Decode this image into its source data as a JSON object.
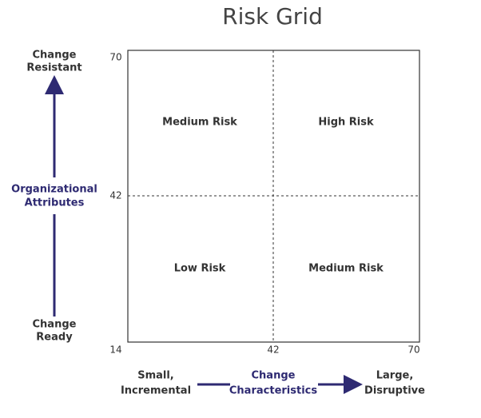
{
  "title": "Risk Grid",
  "y_axis": {
    "top": [
      "Change",
      "Resistant"
    ],
    "label": [
      "Organizational",
      "Attributes"
    ],
    "bottom": [
      "Change",
      "Ready"
    ]
  },
  "x_axis": {
    "left": [
      "Small,",
      "Incremental"
    ],
    "label": [
      "Change",
      "Characteristics"
    ],
    "right": [
      "Large,",
      "Disruptive"
    ]
  },
  "ticks": {
    "y": [
      70,
      42
    ],
    "origin": 14,
    "x": [
      42,
      70
    ]
  },
  "quadrants": [
    "Medium Risk",
    "High Risk",
    "Low Risk",
    "Medium Risk"
  ]
}
